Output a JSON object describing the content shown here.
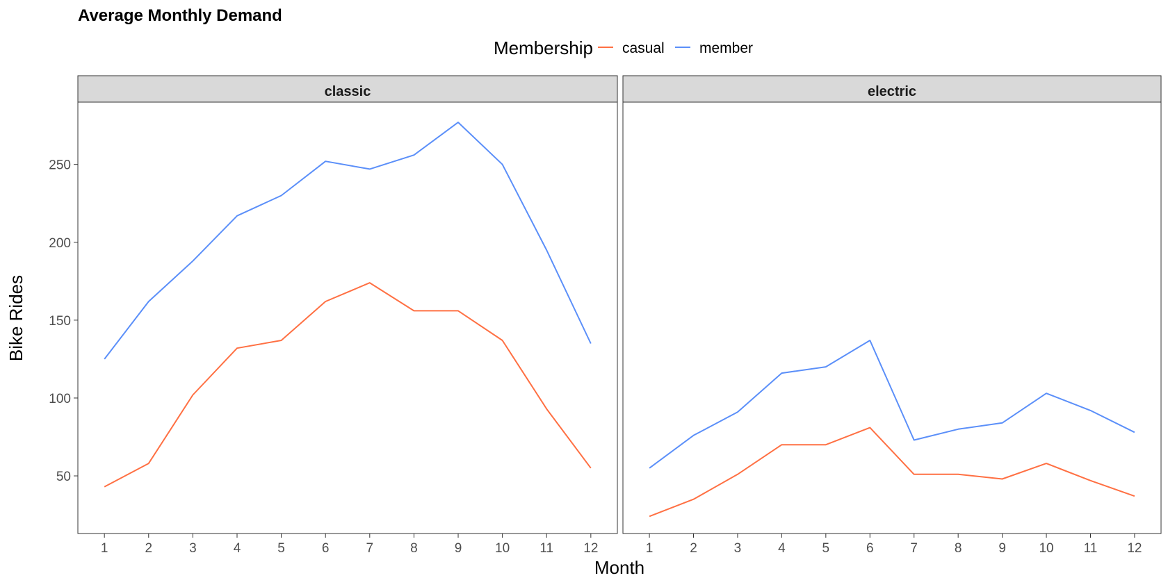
{
  "chart_data": {
    "type": "line",
    "title": "Average Monthly Demand",
    "xlabel": "Month",
    "ylabel": "Bike Rides",
    "legend": {
      "title": "Membership",
      "position": "top",
      "items": [
        {
          "name": "casual",
          "color": "#FF7043"
        },
        {
          "name": "member",
          "color": "#5B8FF9"
        }
      ]
    },
    "x": [
      1,
      2,
      3,
      4,
      5,
      6,
      7,
      8,
      9,
      10,
      11,
      12
    ],
    "xlim": [
      0.4,
      12.6
    ],
    "ylim": [
      13,
      290
    ],
    "yticks": [
      50,
      100,
      150,
      200,
      250
    ],
    "grid": false,
    "facets": [
      {
        "label": "classic",
        "series": [
          {
            "name": "casual",
            "values": [
              43,
              58,
              102,
              132,
              137,
              162,
              174,
              156,
              156,
              137,
              93,
              55
            ]
          },
          {
            "name": "member",
            "values": [
              125,
              162,
              188,
              217,
              230,
              252,
              247,
              256,
              277,
              250,
              195,
              135
            ]
          }
        ]
      },
      {
        "label": "electric",
        "series": [
          {
            "name": "casual",
            "values": [
              24,
              35,
              51,
              70,
              70,
              81,
              51,
              51,
              48,
              58,
              47,
              37
            ]
          },
          {
            "name": "member",
            "values": [
              55,
              76,
              91,
              116,
              120,
              137,
              73,
              80,
              84,
              103,
              92,
              78
            ]
          }
        ]
      }
    ]
  }
}
